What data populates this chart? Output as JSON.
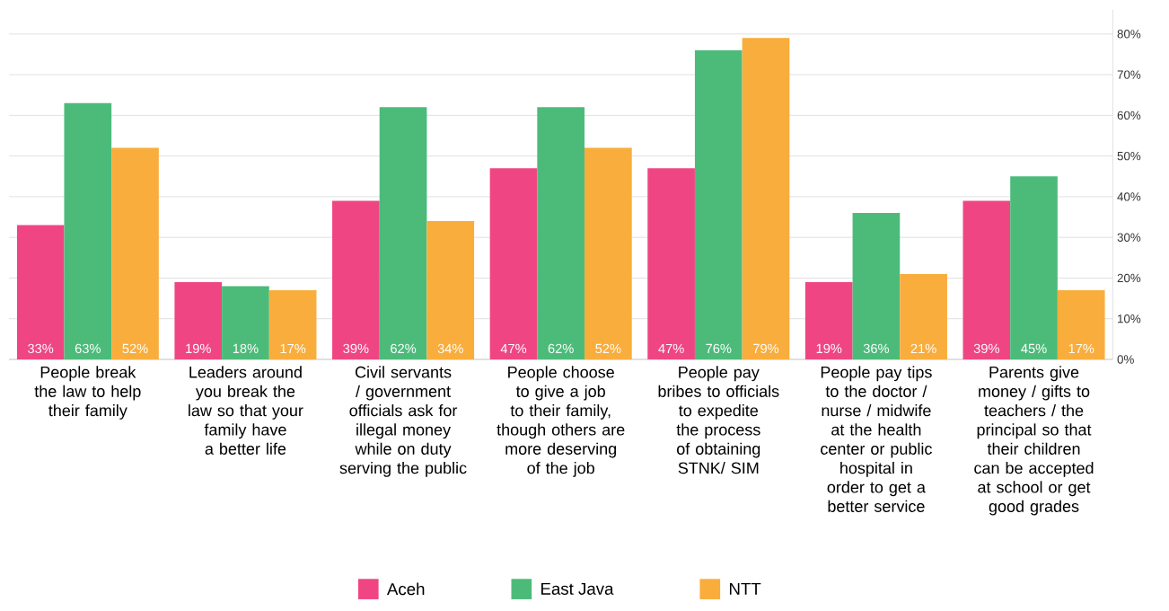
{
  "chart_data": {
    "type": "bar",
    "categories": [
      "People break the law to help their family",
      "Leaders around you break the law so that your family have a better life",
      "Civil servants / government officials ask for illegal money while on duty serving the public",
      "People choose to give a job to their family, though others are more deserving of the job",
      "People pay bribes to officials to expedite the process of obtaining STNK/ SIM",
      "People pay tips to the doctor / nurse / midwife at the health center or public hospital in order to get a better service",
      "Parents give money / gifts to teachers / the principal so that their children can be accepted at school or get good grades"
    ],
    "series": [
      {
        "name": "Aceh",
        "color": "#ef4683",
        "values": [
          33,
          19,
          39,
          47,
          47,
          19,
          39
        ],
        "value_labels": [
          "33%",
          "19%",
          "39%",
          "47%",
          "47%",
          "19%",
          "39%"
        ]
      },
      {
        "name": "East Java",
        "color": "#4cbb7a",
        "values": [
          63,
          18,
          62,
          62,
          76,
          36,
          45
        ],
        "value_labels": [
          "63%",
          "18%",
          "62%",
          "62%",
          "76%",
          "36%",
          "45%"
        ]
      },
      {
        "name": "NTT",
        "color": "#f9ad3c",
        "values": [
          52,
          17,
          34,
          52,
          79,
          21,
          17
        ],
        "value_labels": [
          "52%",
          "17%",
          "34%",
          "52%",
          "79%",
          "21%",
          "17%"
        ]
      }
    ],
    "ylim": [
      0,
      86
    ],
    "yticks": [
      {
        "value": 0,
        "label": "0%"
      },
      {
        "value": 10,
        "label": "10%"
      },
      {
        "value": 20,
        "label": "20%"
      },
      {
        "value": 30,
        "label": "30%"
      },
      {
        "value": 40,
        "label": "40%"
      },
      {
        "value": 50,
        "label": "50%"
      },
      {
        "value": 60,
        "label": "60%"
      },
      {
        "value": 70,
        "label": "70%"
      },
      {
        "value": 80,
        "label": "80%"
      }
    ],
    "grid": "y",
    "legend": "bottom"
  }
}
